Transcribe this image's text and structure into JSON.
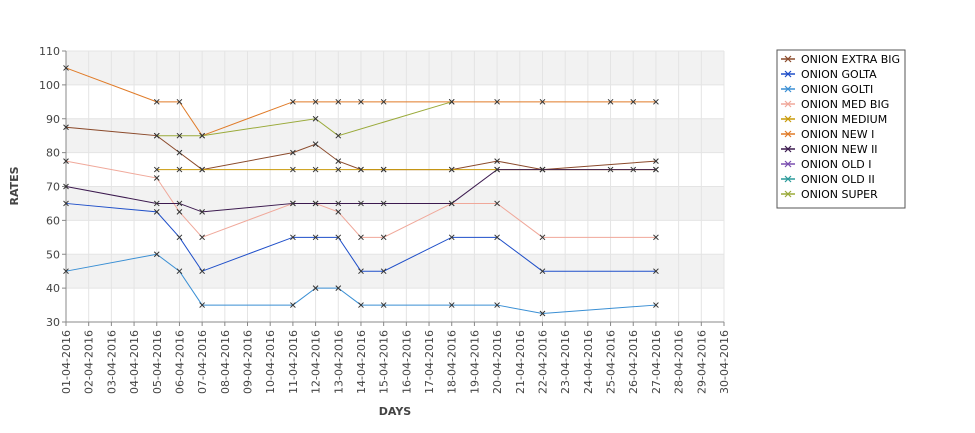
{
  "chart_data": {
    "type": "line",
    "xlabel": "DAYS",
    "ylabel": "RATES",
    "ylim": [
      30,
      110
    ],
    "yticks": [
      30,
      40,
      50,
      60,
      70,
      80,
      90,
      100,
      110
    ],
    "x": [
      "01-04-2016",
      "02-04-2016",
      "03-04-2016",
      "04-04-2016",
      "05-04-2016",
      "06-04-2016",
      "07-04-2016",
      "08-04-2016",
      "09-04-2016",
      "10-04-2016",
      "11-04-2016",
      "12-04-2016",
      "13-04-2016",
      "14-04-2016",
      "15-04-2016",
      "16-04-2016",
      "17-04-2016",
      "18-04-2016",
      "19-04-2016",
      "20-04-2016",
      "21-04-2016",
      "22-04-2016",
      "23-04-2016",
      "24-04-2016",
      "25-04-2016",
      "26-04-2016",
      "27-04-2016",
      "28-04-2016",
      "29-04-2016",
      "30-04-2016"
    ],
    "grid": true,
    "legend_position": "right",
    "series": [
      {
        "name": "ONION EXTRA BIG",
        "color": "#8b4a2b",
        "points": [
          [
            0,
            87.5
          ],
          [
            4,
            85
          ],
          [
            5,
            80
          ],
          [
            6,
            75
          ],
          [
            10,
            80
          ],
          [
            11,
            82.5
          ],
          [
            12,
            77.5
          ],
          [
            13,
            75
          ],
          [
            14,
            75
          ],
          [
            17,
            75
          ],
          [
            19,
            77.5
          ],
          [
            21,
            75
          ],
          [
            26,
            77.5
          ]
        ]
      },
      {
        "name": "ONION GOLTA",
        "color": "#1f4fc9",
        "points": [
          [
            0,
            65
          ],
          [
            4,
            62.5
          ],
          [
            5,
            55
          ],
          [
            6,
            45
          ],
          [
            10,
            55
          ],
          [
            11,
            55
          ],
          [
            12,
            55
          ],
          [
            13,
            45
          ],
          [
            14,
            45
          ],
          [
            17,
            55
          ],
          [
            19,
            55
          ],
          [
            21,
            45
          ],
          [
            26,
            45
          ]
        ]
      },
      {
        "name": "ONION GOLTI",
        "color": "#3a8fd4",
        "points": [
          [
            0,
            45
          ],
          [
            4,
            50
          ],
          [
            5,
            45
          ],
          [
            6,
            35
          ],
          [
            10,
            35
          ],
          [
            11,
            40
          ],
          [
            12,
            40
          ],
          [
            13,
            35
          ],
          [
            14,
            35
          ],
          [
            17,
            35
          ],
          [
            19,
            35
          ],
          [
            21,
            32.5
          ],
          [
            26,
            35
          ]
        ]
      },
      {
        "name": "ONION MED BIG",
        "color": "#f0a89a",
        "points": [
          [
            0,
            77.5
          ],
          [
            4,
            72.5
          ],
          [
            5,
            62.5
          ],
          [
            6,
            55
          ],
          [
            10,
            65
          ],
          [
            11,
            65
          ],
          [
            12,
            62.5
          ],
          [
            13,
            55
          ],
          [
            14,
            55
          ],
          [
            17,
            65
          ],
          [
            19,
            65
          ],
          [
            21,
            55
          ],
          [
            26,
            55
          ]
        ]
      },
      {
        "name": "ONION MEDIUM",
        "color": "#c99a0a",
        "points": [
          [
            4,
            75
          ],
          [
            5,
            75
          ],
          [
            6,
            75
          ],
          [
            10,
            75
          ],
          [
            11,
            75
          ],
          [
            12,
            75
          ],
          [
            13,
            75
          ],
          [
            14,
            75
          ],
          [
            17,
            75
          ],
          [
            19,
            75
          ],
          [
            21,
            75
          ],
          [
            26,
            75
          ]
        ]
      },
      {
        "name": "ONION NEW I",
        "color": "#e07b28",
        "points": [
          [
            0,
            105
          ],
          [
            4,
            95
          ],
          [
            5,
            95
          ],
          [
            6,
            85
          ],
          [
            10,
            95
          ],
          [
            11,
            95
          ],
          [
            12,
            95
          ],
          [
            13,
            95
          ],
          [
            14,
            95
          ],
          [
            17,
            95
          ],
          [
            19,
            95
          ],
          [
            21,
            95
          ],
          [
            24,
            95
          ],
          [
            25,
            95
          ],
          [
            26,
            95
          ]
        ]
      },
      {
        "name": "ONION NEW II",
        "color": "#3c1a4f",
        "points": [
          [
            0,
            70
          ],
          [
            4,
            65
          ],
          [
            5,
            65
          ],
          [
            6,
            62.5
          ],
          [
            10,
            65
          ],
          [
            11,
            65
          ],
          [
            12,
            65
          ],
          [
            13,
            65
          ],
          [
            14,
            65
          ],
          [
            17,
            65
          ],
          [
            19,
            75
          ],
          [
            21,
            75
          ],
          [
            24,
            75
          ],
          [
            25,
            75
          ],
          [
            26,
            75
          ]
        ]
      },
      {
        "name": "ONION OLD I",
        "color": "#7a4fb0",
        "points": []
      },
      {
        "name": "ONION OLD II",
        "color": "#2a9a9a",
        "points": []
      },
      {
        "name": "ONION SUPER",
        "color": "#9aaa3a",
        "points": [
          [
            4,
            85
          ],
          [
            5,
            85
          ],
          [
            6,
            85
          ],
          [
            11,
            90
          ],
          [
            12,
            85
          ],
          [
            17,
            95
          ]
        ]
      }
    ]
  }
}
